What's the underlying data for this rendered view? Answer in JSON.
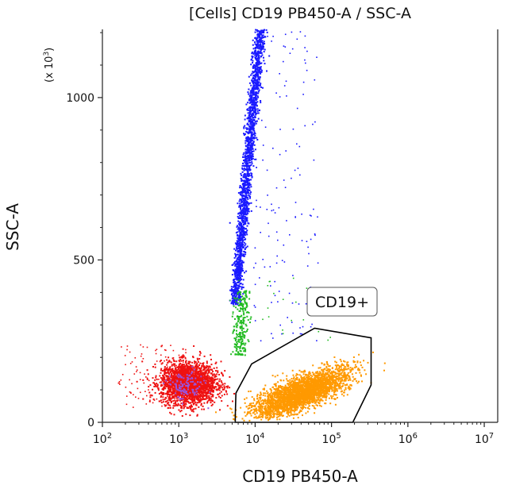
{
  "chart_data": {
    "type": "scatter",
    "title": "[Cells] CD19 PB450-A / SSC-A",
    "xlabel": "CD19 PB450-A",
    "ylabel": "SSC-A",
    "x_scale": "log",
    "y_scale": "linear",
    "xlim": [
      100,
      15000000
    ],
    "ylim": [
      0,
      1210
    ],
    "y_multiplier_label": "(x 10",
    "y_multiplier_exp": "3",
    "y_multiplier_close": ")",
    "x_ticks": [
      {
        "value": 100,
        "base": "10",
        "exp": "2"
      },
      {
        "value": 1000,
        "base": "10",
        "exp": "3"
      },
      {
        "value": 10000,
        "base": "10",
        "exp": "4"
      },
      {
        "value": 100000,
        "base": "10",
        "exp": "5"
      },
      {
        "value": 1000000,
        "base": "10",
        "exp": "6"
      },
      {
        "value": 10000000,
        "base": "10",
        "exp": "7"
      }
    ],
    "y_ticks": [
      {
        "value": 0,
        "label": "0"
      },
      {
        "value": 500,
        "label": "500"
      },
      {
        "value": 1000,
        "label": "1000"
      }
    ],
    "populations": [
      {
        "color": "#ee1111",
        "description": "low CD19, low SSC cluster",
        "center": [
          1350,
          120
        ],
        "approx_count": 2500
      },
      {
        "color": "#9955dd",
        "description": "overlap within red cluster",
        "center": [
          1200,
          110
        ],
        "approx_count": 120
      },
      {
        "color": "#1a1aff",
        "description": "granulocyte-like high SSC stream",
        "center": [
          8500,
          830
        ],
        "approx_count": 2000
      },
      {
        "color": "#22bb22",
        "description": "intermediate stream",
        "center": [
          7000,
          320
        ],
        "approx_count": 250
      },
      {
        "color": "#ff9900",
        "description": "CD19+ gated cluster",
        "center": [
          40000,
          90
        ],
        "approx_count": 3200
      }
    ],
    "gate": {
      "label": "CD19+",
      "color": "#000000",
      "vertices": [
        [
          5500,
          20
        ],
        [
          5600,
          90
        ],
        [
          9000,
          180
        ],
        [
          60000,
          290
        ],
        [
          330000,
          260
        ],
        [
          330000,
          115
        ],
        [
          190000,
          0
        ],
        [
          5500,
          0
        ]
      ]
    },
    "grid": false,
    "legend": "none"
  }
}
